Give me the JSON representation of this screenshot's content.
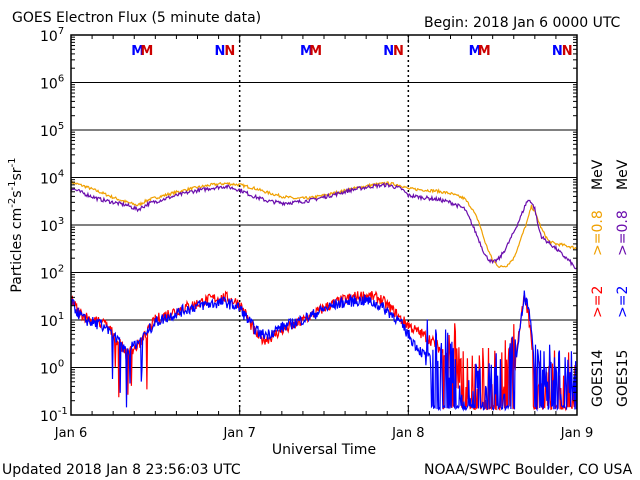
{
  "header": {
    "title": "GOES Electron Flux (5 minute data)",
    "begin": "Begin: 2018 Jan 6 0000 UTC"
  },
  "footer": {
    "updated": "Updated 2018 Jan  8 23:56:03 UTC",
    "credit": "NOAA/SWPC Boulder, CO USA"
  },
  "colors": {
    "goes14_08": "#f0a000",
    "goes15_08": "#6a0dad",
    "goes14_2": "#ff0000",
    "goes15_2": "#0000ff",
    "m_marker_blue": "#0000ff",
    "m_marker_red": "#cc0000"
  },
  "chart_data": {
    "type": "line",
    "title": "GOES Electron Flux (5 minute data)",
    "xlabel": "Universal Time",
    "ylabel_base": "Particles cm",
    "ylabel_sup1": "-2",
    "ylabel_mid1": "s",
    "ylabel_sup2": "-1",
    "ylabel_mid2": "sr",
    "ylabel_sup3": "-1",
    "yscale": "log",
    "ylim": [
      0.1,
      10000000
    ],
    "xlim": [
      0,
      72
    ],
    "x_unit": "hours since 2018 Jan 6 0000 UTC",
    "x_ticks": [
      {
        "x": 0,
        "label": "Jan 6"
      },
      {
        "x": 24,
        "label": "Jan 7"
      },
      {
        "x": 48,
        "label": "Jan 8"
      },
      {
        "x": 72,
        "label": "Jan 9"
      }
    ],
    "y_ticks": [
      {
        "value": 0.1,
        "base": "10",
        "exp": "-1"
      },
      {
        "value": 1,
        "base": "10",
        "exp": "0"
      },
      {
        "value": 10,
        "base": "10",
        "exp": "1"
      },
      {
        "value": 100,
        "base": "10",
        "exp": "2"
      },
      {
        "value": 1000,
        "base": "10",
        "exp": "3"
      },
      {
        "value": 10000,
        "base": "10",
        "exp": "4"
      },
      {
        "value": 100000,
        "base": "10",
        "exp": "5"
      },
      {
        "value": 1000000,
        "base": "10",
        "exp": "6"
      },
      {
        "value": 10000000,
        "base": "10",
        "exp": "7"
      }
    ],
    "threshold_dashed": 1000,
    "markers": [
      {
        "x": 9.5,
        "label": "M",
        "color": "blue"
      },
      {
        "x": 10.8,
        "label": "M",
        "color": "red"
      },
      {
        "x": 21.2,
        "label": "N",
        "color": "blue"
      },
      {
        "x": 22.6,
        "label": "N",
        "color": "red"
      },
      {
        "x": 33.5,
        "label": "M",
        "color": "blue"
      },
      {
        "x": 34.8,
        "label": "M",
        "color": "red"
      },
      {
        "x": 45.2,
        "label": "N",
        "color": "blue"
      },
      {
        "x": 46.6,
        "label": "N",
        "color": "red"
      },
      {
        "x": 57.5,
        "label": "M",
        "color": "blue"
      },
      {
        "x": 58.8,
        "label": "M",
        "color": "red"
      },
      {
        "x": 69.2,
        "label": "N",
        "color": "blue"
      },
      {
        "x": 70.6,
        "label": "N",
        "color": "red"
      }
    ],
    "legend": {
      "goes14": "GOES14",
      "goes15": "GOES15",
      "e2_14": ">=2",
      "e08_14": ">=0.8",
      "e2_15": ">=2",
      "e08_15": ">=0.8",
      "unit": "MeV"
    },
    "series": [
      {
        "name": "GOES14 >=0.8 MeV",
        "color_key": "goes14_08",
        "noise": 0.03,
        "points": [
          [
            0,
            8000
          ],
          [
            2,
            6500
          ],
          [
            4,
            5000
          ],
          [
            6,
            3800
          ],
          [
            8,
            3000
          ],
          [
            9.5,
            2600
          ],
          [
            11,
            3400
          ],
          [
            14,
            4500
          ],
          [
            17,
            5800
          ],
          [
            20,
            7000
          ],
          [
            22,
            7500
          ],
          [
            24,
            7000
          ],
          [
            26,
            6000
          ],
          [
            28,
            4800
          ],
          [
            30,
            4000
          ],
          [
            32,
            3600
          ],
          [
            34,
            3700
          ],
          [
            37,
            4500
          ],
          [
            40,
            5800
          ],
          [
            43,
            7000
          ],
          [
            45,
            7600
          ],
          [
            47,
            6800
          ],
          [
            48,
            5800
          ],
          [
            50,
            5500
          ],
          [
            52,
            5200
          ],
          [
            54,
            4600
          ],
          [
            56,
            3600
          ],
          [
            57,
            2300
          ],
          [
            58,
            1200
          ],
          [
            59,
            400
          ],
          [
            60,
            180
          ],
          [
            61,
            130
          ],
          [
            62,
            140
          ],
          [
            63,
            200
          ],
          [
            64,
            500
          ],
          [
            65,
            1300
          ],
          [
            65.5,
            2500
          ],
          [
            66,
            1900
          ],
          [
            67,
            800
          ],
          [
            68,
            450
          ],
          [
            69,
            400
          ],
          [
            70,
            380
          ],
          [
            71,
            350
          ],
          [
            72,
            320
          ]
        ]
      },
      {
        "name": "GOES15 >=0.8 MeV",
        "color_key": "goes15_08",
        "noise": 0.04,
        "points": [
          [
            0,
            6000
          ],
          [
            2,
            4500
          ],
          [
            4,
            3500
          ],
          [
            6,
            3000
          ],
          [
            8,
            2600
          ],
          [
            9.5,
            2100
          ],
          [
            11,
            2800
          ],
          [
            14,
            3800
          ],
          [
            17,
            5000
          ],
          [
            20,
            6000
          ],
          [
            22,
            6500
          ],
          [
            24,
            5500
          ],
          [
            26,
            4000
          ],
          [
            28,
            3200
          ],
          [
            30,
            2900
          ],
          [
            32,
            3000
          ],
          [
            34,
            3300
          ],
          [
            37,
            4200
          ],
          [
            40,
            5500
          ],
          [
            43,
            6600
          ],
          [
            45,
            7000
          ],
          [
            47,
            5800
          ],
          [
            48,
            4200
          ],
          [
            50,
            3800
          ],
          [
            52,
            3500
          ],
          [
            54,
            3000
          ],
          [
            56,
            2200
          ],
          [
            57,
            1100
          ],
          [
            58,
            500
          ],
          [
            59,
            220
          ],
          [
            60,
            160
          ],
          [
            61,
            200
          ],
          [
            62,
            350
          ],
          [
            63,
            700
          ],
          [
            64,
            1500
          ],
          [
            64.8,
            3000
          ],
          [
            65.3,
            3400
          ],
          [
            66,
            2200
          ],
          [
            66.5,
            900
          ],
          [
            67,
            550
          ],
          [
            68,
            420
          ],
          [
            69,
            320
          ],
          [
            70,
            230
          ],
          [
            71,
            170
          ],
          [
            72,
            110
          ]
        ]
      },
      {
        "name": "GOES14 >=2 MeV",
        "color_key": "goes14_2",
        "noise": 0.12,
        "points": [
          [
            0,
            30
          ],
          [
            1,
            15
          ],
          [
            2,
            12
          ],
          [
            3,
            10
          ],
          [
            4,
            9
          ],
          [
            5,
            8
          ],
          [
            6,
            5
          ],
          [
            7,
            3
          ],
          [
            8,
            2
          ],
          [
            9,
            2.5
          ],
          [
            10,
            3.5
          ],
          [
            11,
            6
          ],
          [
            12,
            10
          ],
          [
            14,
            14
          ],
          [
            16,
            18
          ],
          [
            18,
            22
          ],
          [
            20,
            28
          ],
          [
            22,
            30
          ],
          [
            24,
            22
          ],
          [
            25,
            12
          ],
          [
            26,
            6
          ],
          [
            27,
            4
          ],
          [
            28,
            4
          ],
          [
            29,
            5
          ],
          [
            30,
            6
          ],
          [
            32,
            8
          ],
          [
            34,
            12
          ],
          [
            36,
            18
          ],
          [
            38,
            24
          ],
          [
            40,
            30
          ],
          [
            42,
            33
          ],
          [
            44,
            28
          ],
          [
            46,
            15
          ],
          [
            47,
            10
          ],
          [
            48,
            8
          ],
          [
            49,
            6
          ],
          [
            50,
            5
          ],
          [
            51,
            4
          ],
          [
            52,
            3
          ],
          [
            53,
            2
          ],
          [
            54,
            1.5
          ],
          [
            55,
            0.8
          ],
          [
            56,
            0.5
          ],
          [
            57,
            0.3
          ],
          [
            58,
            0.25
          ],
          [
            59,
            0.3
          ],
          [
            60,
            0.35
          ],
          [
            61,
            0.4
          ],
          [
            62,
            0.5
          ],
          [
            63,
            1
          ],
          [
            64,
            10
          ],
          [
            64.5,
            28
          ],
          [
            65,
            15
          ],
          [
            65.5,
            4
          ],
          [
            66,
            1
          ],
          [
            67,
            0.5
          ],
          [
            68,
            0.35
          ],
          [
            69,
            0.3
          ],
          [
            70,
            0.3
          ],
          [
            71,
            0.3
          ],
          [
            72,
            0.3
          ]
        ]
      },
      {
        "name": "GOES15 >=2 MeV",
        "color_key": "goes15_2",
        "noise": 0.12,
        "points": [
          [
            0,
            25
          ],
          [
            1,
            14
          ],
          [
            2,
            10
          ],
          [
            3,
            9
          ],
          [
            4,
            8
          ],
          [
            5,
            7
          ],
          [
            6,
            5
          ],
          [
            7,
            3
          ],
          [
            8,
            2
          ],
          [
            9,
            3
          ],
          [
            10,
            4
          ],
          [
            11,
            6
          ],
          [
            12,
            9
          ],
          [
            14,
            12
          ],
          [
            16,
            16
          ],
          [
            18,
            20
          ],
          [
            20,
            22
          ],
          [
            22,
            24
          ],
          [
            24,
            18
          ],
          [
            25,
            11
          ],
          [
            26,
            7
          ],
          [
            27,
            5
          ],
          [
            28,
            5
          ],
          [
            29,
            6
          ],
          [
            30,
            7
          ],
          [
            32,
            9
          ],
          [
            34,
            12
          ],
          [
            36,
            17
          ],
          [
            38,
            22
          ],
          [
            40,
            25
          ],
          [
            42,
            26
          ],
          [
            44,
            20
          ],
          [
            46,
            12
          ],
          [
            47,
            8
          ],
          [
            48,
            5
          ],
          [
            49,
            3
          ],
          [
            50,
            2
          ],
          [
            51,
            1.5
          ],
          [
            52,
            1.2
          ],
          [
            53,
            1
          ],
          [
            54,
            0.8
          ],
          [
            55,
            0.5
          ],
          [
            56,
            0.3
          ],
          [
            57,
            0.25
          ],
          [
            58,
            0.2
          ],
          [
            59,
            0.25
          ],
          [
            60,
            0.3
          ],
          [
            61,
            0.35
          ],
          [
            62,
            0.4
          ],
          [
            63,
            0.8
          ],
          [
            64,
            8
          ],
          [
            64.5,
            32
          ],
          [
            65,
            20
          ],
          [
            65.5,
            6
          ],
          [
            66,
            1.2
          ],
          [
            67,
            0.5
          ],
          [
            68,
            0.35
          ],
          [
            69,
            0.3
          ],
          [
            70,
            0.3
          ],
          [
            71,
            0.3
          ],
          [
            72,
            0.3
          ]
        ]
      }
    ]
  }
}
